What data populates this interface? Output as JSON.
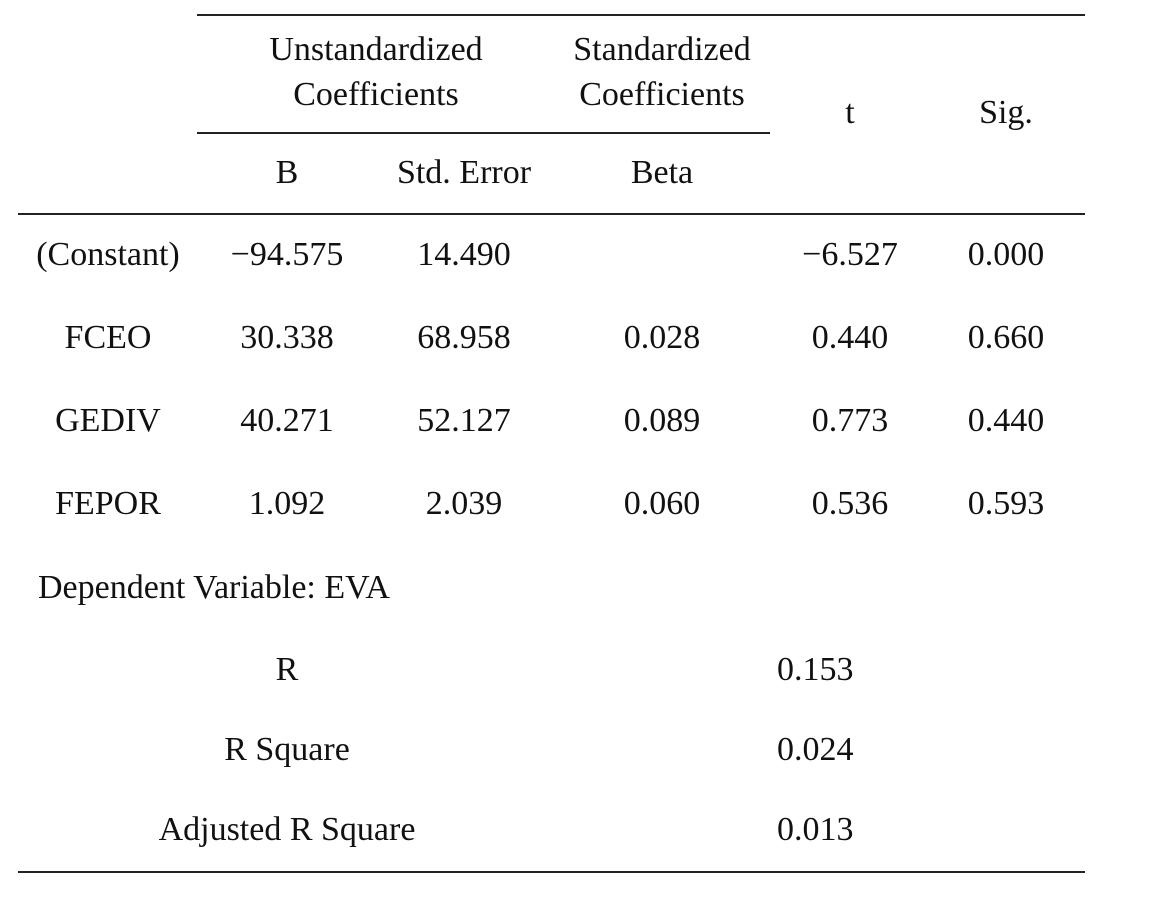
{
  "table": {
    "header": {
      "groups": [
        [
          "Unstandardized",
          "Coefficients"
        ],
        [
          "Standardized",
          "Coefficients"
        ]
      ],
      "t": "t",
      "sig": "Sig.",
      "subcolumns": [
        "B",
        "Std. Error",
        "Beta"
      ]
    },
    "rows": [
      [
        "(Constant)",
        "−94.575",
        "14.490",
        null,
        "−6.527",
        "0.000"
      ],
      [
        "FCEO",
        "30.338",
        "68.958",
        "0.028",
        "0.440",
        "0.660"
      ],
      [
        "GEDIV",
        "40.271",
        "52.127",
        "0.089",
        "0.773",
        "0.440"
      ],
      [
        "FEPOR",
        "1.092",
        "2.039",
        "0.060",
        "0.536",
        "0.593"
      ]
    ],
    "note": "Dependent Variable: EVA",
    "summary": [
      [
        "R",
        "0.153"
      ],
      [
        "R Square",
        "0.024"
      ],
      [
        "Adjusted R Square",
        "0.013"
      ]
    ]
  }
}
